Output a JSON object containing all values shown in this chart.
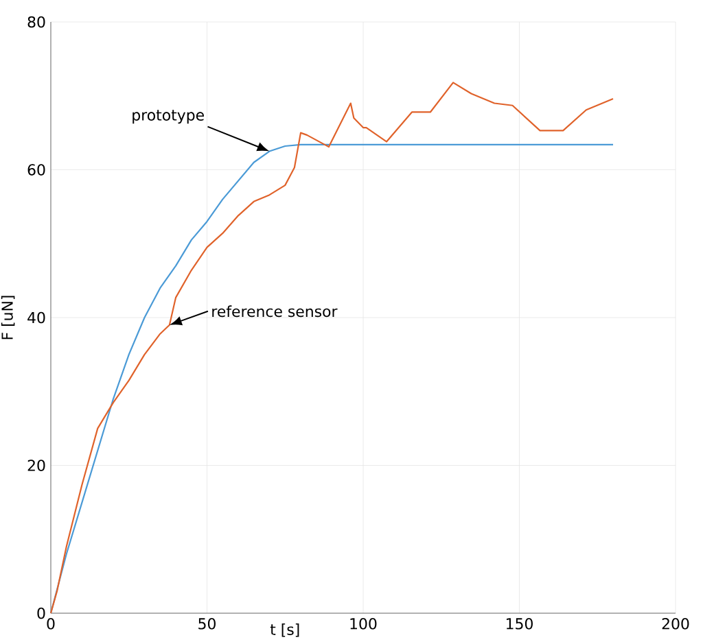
{
  "chart_data": {
    "type": "line",
    "xlabel": "t [s]",
    "ylabel": "F [uN]",
    "xlim": [
      0,
      200
    ],
    "ylim": [
      0,
      80
    ],
    "xticks": [
      0,
      50,
      100,
      150,
      200
    ],
    "yticks": [
      0,
      20,
      40,
      60,
      80
    ],
    "grid": true,
    "legend": false,
    "series": [
      {
        "name": "prototype",
        "color": "#4a9ad6",
        "x": [
          0,
          5,
          10,
          15,
          20,
          25,
          30,
          35,
          40,
          45,
          50,
          55,
          60,
          65,
          70,
          75,
          80,
          90,
          180
        ],
        "values": [
          0,
          8,
          15,
          22,
          29,
          35,
          40,
          44,
          47,
          50.5,
          53,
          56,
          58.5,
          61,
          62.5,
          63.2,
          63.4,
          63.4,
          63.4
        ]
      },
      {
        "name": "reference sensor",
        "color": "#e0622a",
        "x": [
          0,
          2,
          5,
          10,
          15,
          20,
          25,
          30,
          35,
          38,
          40,
          45,
          50,
          55,
          60,
          65,
          70,
          75,
          78,
          80,
          82,
          89,
          96,
          97,
          100,
          101,
          107.5,
          115.6,
          121.5,
          128.8,
          134.6,
          142,
          147.8,
          156.6,
          164,
          171.4,
          180
        ],
        "values": [
          0,
          3,
          9,
          17.4,
          25,
          28.5,
          31.5,
          35,
          37.8,
          39,
          42.7,
          46.4,
          49.5,
          51.4,
          53.8,
          55.7,
          56.6,
          57.9,
          60.3,
          65,
          64.7,
          63.1,
          69,
          67,
          65.7,
          65.7,
          63.8,
          67.8,
          67.8,
          71.8,
          70.3,
          69,
          68.7,
          65.3,
          65.3,
          68.1,
          69.6
        ]
      }
    ]
  }
}
